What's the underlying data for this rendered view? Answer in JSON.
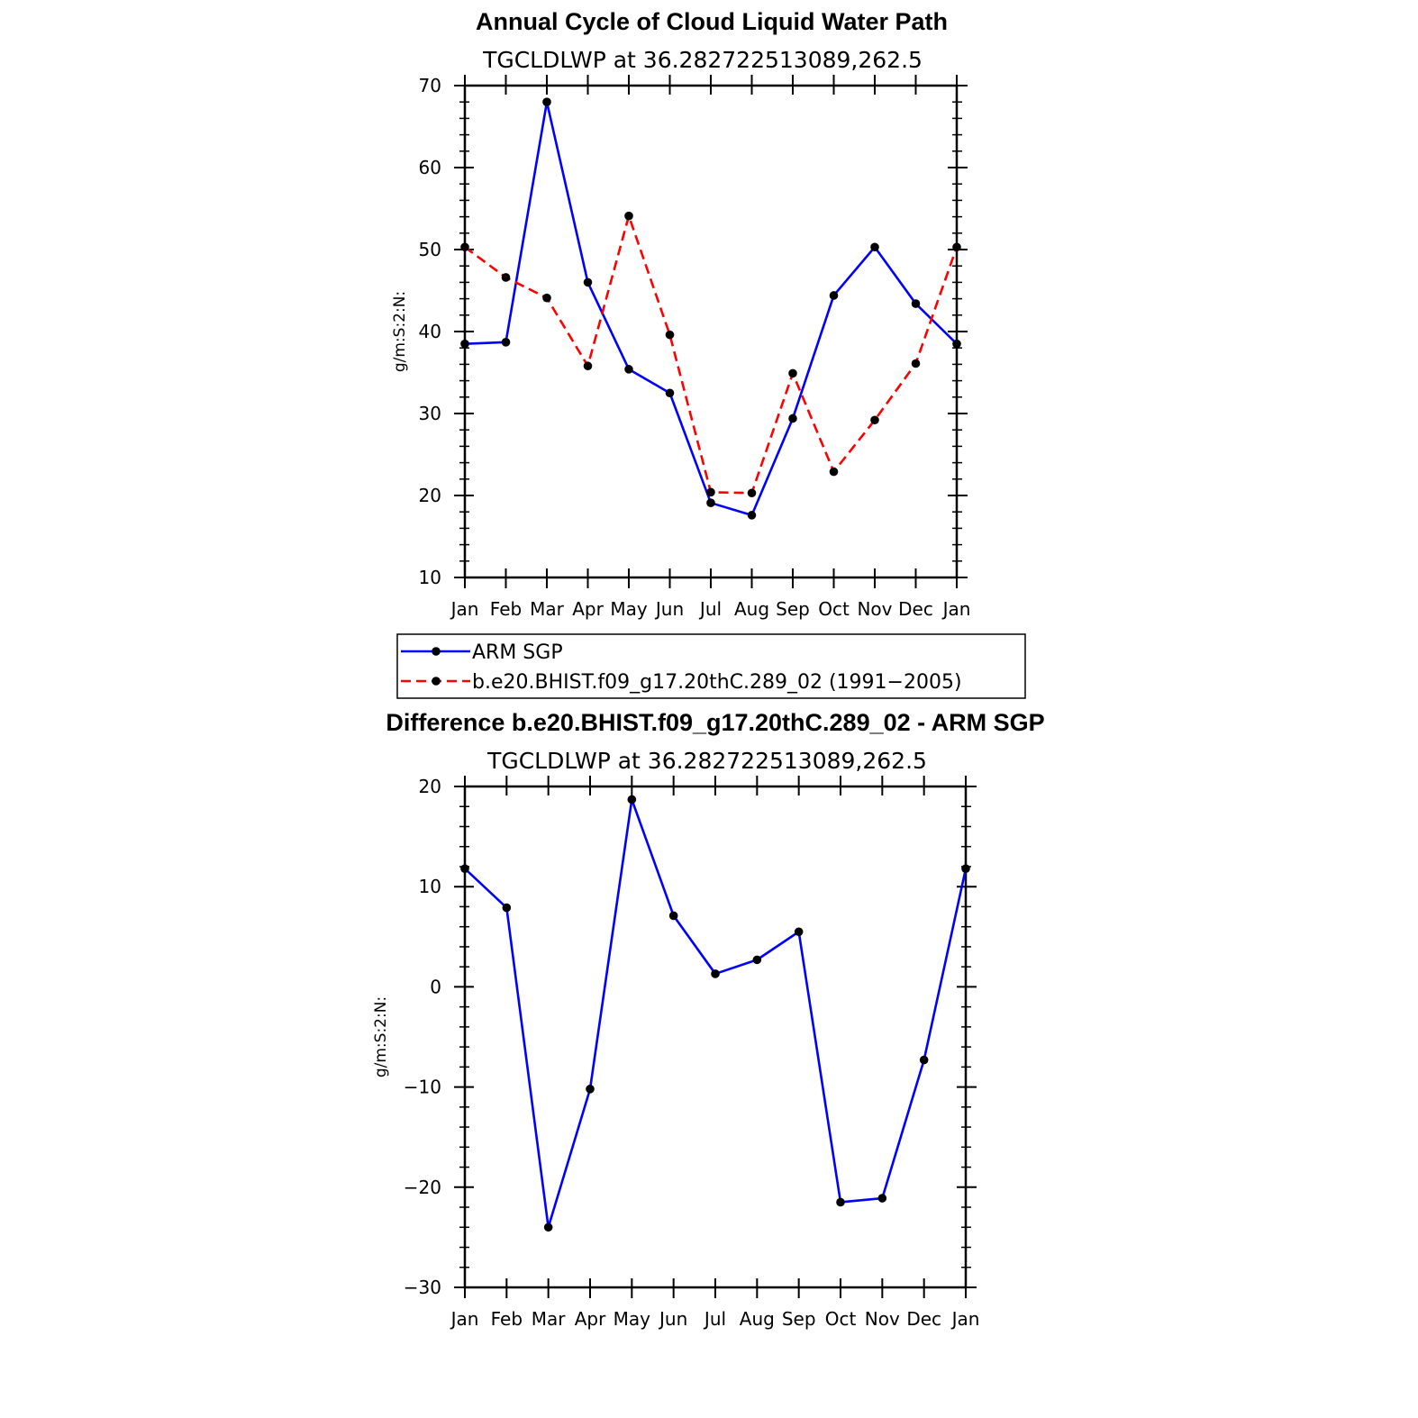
{
  "chart_data": [
    {
      "type": "line",
      "title": "Annual Cycle of Cloud Liquid Water Path",
      "subtitle": "TGCLDLWP  at  36.282722513089,262.5",
      "xlabel": "",
      "ylabel": "g/m:S:2:N:",
      "ylim": [
        10,
        70
      ],
      "yticks": [
        10,
        20,
        30,
        40,
        50,
        60,
        70
      ],
      "y_tick_labels": [
        "10",
        "20",
        "30",
        "40",
        "50",
        "60",
        "70"
      ],
      "categories": [
        "Jan",
        "Feb",
        "Mar",
        "Apr",
        "May",
        "Jun",
        "Jul",
        "Aug",
        "Sep",
        "Oct",
        "Nov",
        "Dec",
        "Jan"
      ],
      "grid": false,
      "legend_position": "below",
      "series": [
        {
          "name": "ARM SGP",
          "color": "#0000ff",
          "dash": "solid",
          "values": [
            38.5,
            38.7,
            68.0,
            46.0,
            35.4,
            32.5,
            19.1,
            17.6,
            29.4,
            44.4,
            50.3,
            43.4,
            38.5
          ]
        },
        {
          "name": "b.e20.BHIST.f09_g17.20thC.289_02 (1991−2005)",
          "color": "#ff0000",
          "dash": "dashed",
          "values": [
            50.3,
            46.6,
            44.1,
            35.8,
            54.1,
            39.6,
            20.4,
            20.3,
            34.9,
            22.9,
            29.2,
            36.1,
            50.3
          ]
        }
      ]
    },
    {
      "type": "line",
      "title": "Difference b.e20.BHIST.f09_g17.20thC.289_02 - ARM SGP",
      "subtitle": "TGCLDLWP  at  36.282722513089,262.5",
      "xlabel": "",
      "ylabel": "g/m:S:2:N:",
      "ylim": [
        -30,
        20
      ],
      "yticks": [
        -30,
        -20,
        -10,
        0,
        10,
        20
      ],
      "y_tick_labels": [
        "−30",
        "−20",
        "−10",
        "0",
        "10",
        "20"
      ],
      "categories": [
        "Jan",
        "Feb",
        "Mar",
        "Apr",
        "May",
        "Jun",
        "Jul",
        "Aug",
        "Sep",
        "Oct",
        "Nov",
        "Dec",
        "Jan"
      ],
      "grid": false,
      "series": [
        {
          "name": "Difference",
          "color": "#0000ff",
          "dash": "solid",
          "values": [
            11.8,
            7.9,
            -24.0,
            -10.2,
            18.7,
            7.1,
            1.3,
            2.7,
            5.5,
            -21.5,
            -21.1,
            -7.3,
            11.8
          ]
        }
      ]
    }
  ]
}
